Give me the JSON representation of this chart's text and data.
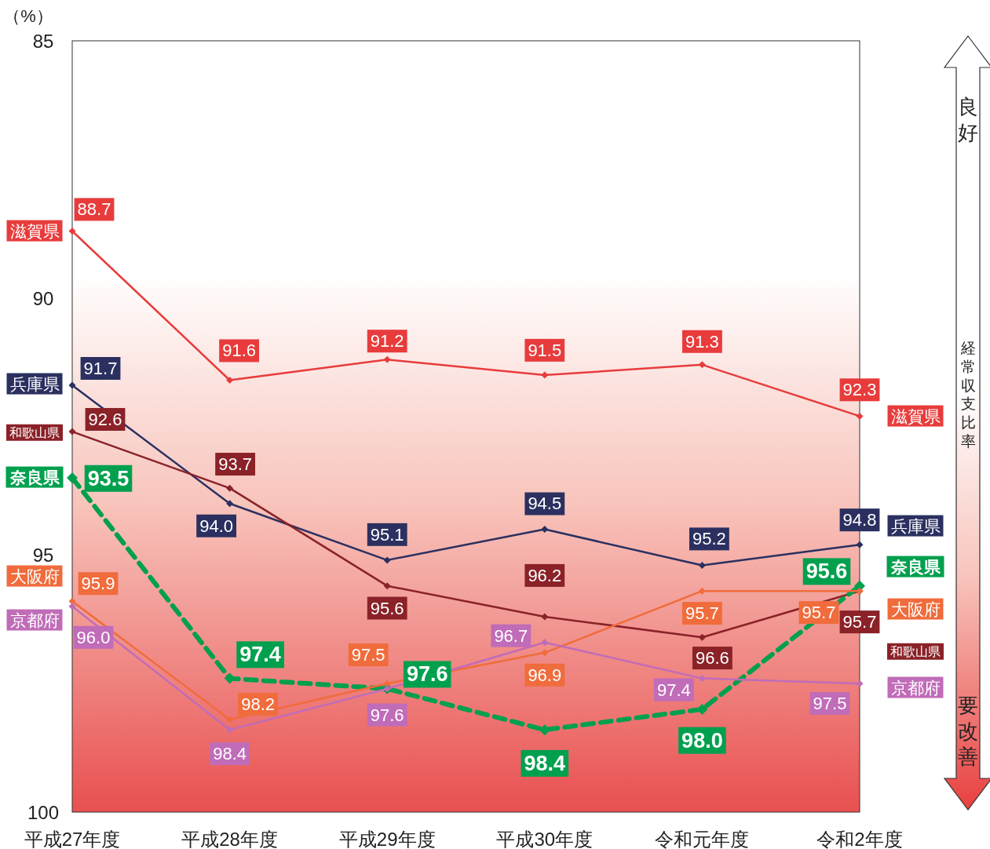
{
  "chart_data": {
    "type": "line",
    "ylabel": "（%）",
    "categories": [
      "平成27年度",
      "平成28年度",
      "平成29年度",
      "平成30年度",
      "令和元年度",
      "令和2年度"
    ],
    "ylim": [
      100,
      85
    ],
    "yticks": [
      85,
      90,
      95,
      100
    ],
    "marker": "diamond",
    "legend": "left",
    "data_labels": true,
    "series": [
      {
        "name": "滋賀県",
        "color": "#e83c3c",
        "line_style": "solid",
        "values": [
          88.7,
          91.6,
          91.2,
          91.5,
          91.3,
          92.3
        ],
        "value_labels": [
          "88.7",
          "91.6",
          "91.2",
          "91.5",
          "91.3",
          "92.3"
        ]
      },
      {
        "name": "兵庫県",
        "color": "#2b3060",
        "line_style": "solid",
        "values": [
          91.7,
          94.0,
          95.1,
          94.5,
          95.2,
          94.8
        ],
        "value_labels": [
          "91.7",
          "94.0",
          "95.1",
          "94.5",
          "95.2",
          "94.8"
        ]
      },
      {
        "name": "和歌山県",
        "color": "#8a2228",
        "line_style": "solid",
        "values": [
          92.6,
          93.7,
          95.6,
          96.2,
          96.6,
          95.7
        ],
        "value_labels": [
          "92.6",
          "93.7",
          "95.6",
          "96.2",
          "96.6",
          "95.7"
        ]
      },
      {
        "name": "奈良県",
        "color": "#00a04e",
        "line_style": "dashed",
        "values": [
          93.5,
          97.4,
          97.6,
          98.4,
          98.0,
          95.6
        ],
        "value_labels": [
          "93.5",
          "97.4",
          "97.6",
          "98.4",
          "98.0",
          "95.6"
        ]
      },
      {
        "name": "大阪府",
        "color": "#f06c3c",
        "line_style": "solid",
        "values": [
          95.9,
          98.2,
          97.5,
          96.9,
          95.7,
          95.7
        ],
        "value_labels": [
          "95.9",
          "98.2",
          "97.5",
          "96.9",
          "95.7",
          "95.7"
        ]
      },
      {
        "name": "京都府",
        "color": "#c06cb8",
        "line_style": "solid",
        "values": [
          96.0,
          98.4,
          97.6,
          96.7,
          97.4,
          97.5
        ],
        "value_labels": [
          "96.0",
          "98.4",
          "97.6",
          "96.7",
          "97.4",
          "97.5"
        ]
      }
    ],
    "annotations": [
      "良好",
      "経常収支比率",
      "要改善"
    ]
  }
}
